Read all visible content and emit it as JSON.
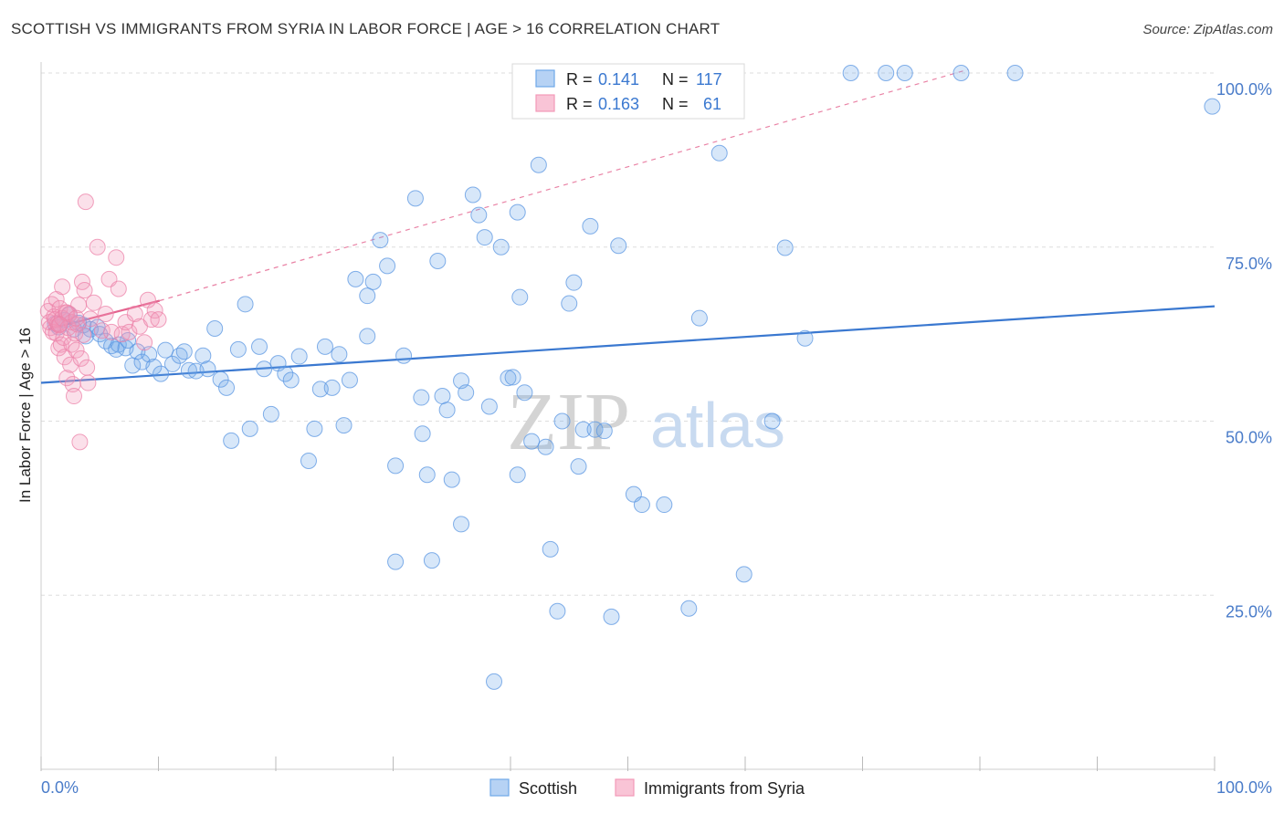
{
  "header": {
    "title": "SCOTTISH VS IMMIGRANTS FROM SYRIA IN LABOR FORCE | AGE > 16 CORRELATION CHART",
    "source": "Source: ZipAtlas.com"
  },
  "watermark": {
    "zip": "ZIP",
    "atlas": "atlas"
  },
  "colors": {
    "blue": "#6fa8e8",
    "blue_line": "#3a78d0",
    "pink": "#f299b8",
    "pink_line": "#e4648f",
    "tick_text": "#4a7cc9"
  },
  "legend": {
    "rows": [
      {
        "r_label": "R = ",
        "r_value": "0.141",
        "n_label": "N = ",
        "n_value": "117"
      },
      {
        "r_label": "R = ",
        "r_value": "0.163",
        "n_label": "N = ",
        "n_value": "61"
      }
    ]
  },
  "bottom_legend": [
    {
      "label": "Scottish"
    },
    {
      "label": "Immigrants from Syria"
    }
  ],
  "chart_data": {
    "type": "scatter",
    "title": "SCOTTISH VS IMMIGRANTS FROM SYRIA IN LABOR FORCE | AGE > 16 CORRELATION CHART",
    "xlabel": "",
    "ylabel": "In Labor Force | Age > 16",
    "xlim": [
      0,
      100
    ],
    "ylim": [
      0,
      105
    ],
    "x_tick_labels": [
      "0.0%",
      "100.0%"
    ],
    "y_ticks": [
      25,
      50,
      75,
      100
    ],
    "y_tick_labels": [
      "25.0%",
      "50.0%",
      "75.0%",
      "100.0%"
    ],
    "grid": true,
    "series": [
      {
        "name": "Scottish",
        "color": "#6fa8e8",
        "trend": [
          [
            0,
            55.5
          ],
          [
            100,
            66.5
          ]
        ],
        "points": [
          [
            1.2,
            64
          ],
          [
            1.5,
            63.5
          ],
          [
            2.0,
            64.5
          ],
          [
            2.4,
            65.3
          ],
          [
            2.8,
            63.2
          ],
          [
            3.2,
            64.1
          ],
          [
            3.6,
            63.8
          ],
          [
            3.8,
            62.2
          ],
          [
            4.2,
            63.2
          ],
          [
            4.8,
            63.5
          ],
          [
            5.0,
            62.5
          ],
          [
            5.5,
            61.5
          ],
          [
            6.0,
            60.8
          ],
          [
            6.4,
            60.3
          ],
          [
            6.6,
            61.0
          ],
          [
            7.2,
            60.5
          ],
          [
            7.4,
            61.6
          ],
          [
            7.8,
            58.0
          ],
          [
            8.2,
            60.0
          ],
          [
            8.6,
            58.5
          ],
          [
            9.2,
            59.6
          ],
          [
            9.6,
            57.8
          ],
          [
            10.2,
            56.8
          ],
          [
            10.6,
            60.2
          ],
          [
            11.2,
            58.2
          ],
          [
            11.8,
            59.4
          ],
          [
            12.2,
            60.0
          ],
          [
            12.6,
            57.3
          ],
          [
            13.2,
            57.2
          ],
          [
            13.8,
            59.4
          ],
          [
            14.2,
            57.5
          ],
          [
            14.8,
            63.3
          ],
          [
            15.3,
            56.0
          ],
          [
            15.8,
            54.8
          ],
          [
            16.2,
            47.2
          ],
          [
            16.8,
            60.3
          ],
          [
            17.4,
            66.8
          ],
          [
            17.8,
            48.9
          ],
          [
            18.6,
            60.7
          ],
          [
            19.0,
            57.5
          ],
          [
            19.6,
            51.0
          ],
          [
            20.2,
            58.3
          ],
          [
            20.8,
            56.8
          ],
          [
            21.3,
            55.9
          ],
          [
            22.0,
            59.3
          ],
          [
            22.8,
            44.3
          ],
          [
            23.3,
            48.9
          ],
          [
            23.8,
            54.6
          ],
          [
            24.2,
            60.7
          ],
          [
            24.8,
            54.8
          ],
          [
            25.4,
            59.6
          ],
          [
            25.8,
            49.4
          ],
          [
            26.3,
            55.9
          ],
          [
            26.8,
            70.4
          ],
          [
            27.8,
            68.0
          ],
          [
            27.8,
            62.2
          ],
          [
            28.3,
            70.0
          ],
          [
            28.9,
            76.0
          ],
          [
            29.5,
            72.3
          ],
          [
            30.2,
            43.6
          ],
          [
            30.2,
            29.8
          ],
          [
            30.9,
            59.4
          ],
          [
            31.9,
            82.0
          ],
          [
            32.4,
            53.4
          ],
          [
            32.5,
            48.2
          ],
          [
            32.9,
            42.3
          ],
          [
            33.3,
            30.0
          ],
          [
            33.8,
            73.0
          ],
          [
            34.2,
            53.6
          ],
          [
            34.6,
            51.6
          ],
          [
            35.0,
            41.6
          ],
          [
            35.8,
            55.8
          ],
          [
            35.8,
            35.2
          ],
          [
            36.2,
            54.1
          ],
          [
            36.8,
            82.5
          ],
          [
            37.3,
            79.6
          ],
          [
            37.8,
            76.4
          ],
          [
            38.2,
            52.1
          ],
          [
            38.6,
            12.6
          ],
          [
            39.2,
            75.0
          ],
          [
            39.8,
            56.2
          ],
          [
            40.2,
            56.3
          ],
          [
            40.6,
            42.3
          ],
          [
            40.6,
            80.0
          ],
          [
            40.8,
            67.8
          ],
          [
            41.2,
            54.1
          ],
          [
            41.8,
            47.1
          ],
          [
            42.4,
            86.8
          ],
          [
            43.0,
            46.3
          ],
          [
            43.4,
            31.6
          ],
          [
            44.0,
            22.7
          ],
          [
            44.4,
            50.0
          ],
          [
            45.0,
            66.9
          ],
          [
            45.4,
            69.9
          ],
          [
            45.8,
            43.5
          ],
          [
            46.2,
            48.8
          ],
          [
            46.8,
            78.0
          ],
          [
            47.2,
            48.8
          ],
          [
            48.0,
            48.6
          ],
          [
            48.6,
            21.9
          ],
          [
            49.2,
            75.2
          ],
          [
            50.5,
            39.5
          ],
          [
            51.2,
            38.0
          ],
          [
            53.1,
            38.0
          ],
          [
            55.2,
            23.1
          ],
          [
            56.1,
            64.8
          ],
          [
            57.8,
            88.5
          ],
          [
            59.9,
            28.0
          ],
          [
            62.3,
            50.0
          ],
          [
            63.4,
            74.9
          ],
          [
            65.1,
            61.9
          ],
          [
            69.0,
            100
          ],
          [
            72.0,
            100
          ],
          [
            73.6,
            100
          ],
          [
            78.4,
            100
          ],
          [
            83.0,
            100
          ],
          [
            99.8,
            95.2
          ]
        ]
      },
      {
        "name": "Immigrants from Syria",
        "color": "#f299b8",
        "trend": [
          [
            0.6,
            63.2
          ],
          [
            10.1,
            67.3
          ]
        ],
        "trend_extended": [
          [
            10.1,
            67.3
          ],
          [
            79.0,
            100.5
          ]
        ],
        "points": [
          [
            0.6,
            65.8
          ],
          [
            0.7,
            64.2
          ],
          [
            0.8,
            63.4
          ],
          [
            0.9,
            66.8
          ],
          [
            1.0,
            62.8
          ],
          [
            1.1,
            65.0
          ],
          [
            1.2,
            64.6
          ],
          [
            1.3,
            67.5
          ],
          [
            1.3,
            62.6
          ],
          [
            1.4,
            64.0
          ],
          [
            1.5,
            60.5
          ],
          [
            1.5,
            63.8
          ],
          [
            1.6,
            66.2
          ],
          [
            1.7,
            61.0
          ],
          [
            1.8,
            64.8
          ],
          [
            1.8,
            69.3
          ],
          [
            1.9,
            62.0
          ],
          [
            2.0,
            59.2
          ],
          [
            2.1,
            65.6
          ],
          [
            2.2,
            56.2
          ],
          [
            2.3,
            63.4
          ],
          [
            2.4,
            65.4
          ],
          [
            2.5,
            58.1
          ],
          [
            2.6,
            61.0
          ],
          [
            2.6,
            64.2
          ],
          [
            2.7,
            55.3
          ],
          [
            2.8,
            53.6
          ],
          [
            2.9,
            62.6
          ],
          [
            3.0,
            60.2
          ],
          [
            3.1,
            63.9
          ],
          [
            3.2,
            66.7
          ],
          [
            3.3,
            47.0
          ],
          [
            3.4,
            59.0
          ],
          [
            3.5,
            70.0
          ],
          [
            3.6,
            62.4
          ],
          [
            3.7,
            68.8
          ],
          [
            3.8,
            81.5
          ],
          [
            3.9,
            57.7
          ],
          [
            4.0,
            55.5
          ],
          [
            4.2,
            64.7
          ],
          [
            4.5,
            67.0
          ],
          [
            4.8,
            75.0
          ],
          [
            5.2,
            63.0
          ],
          [
            5.5,
            65.4
          ],
          [
            5.8,
            70.4
          ],
          [
            6.0,
            62.8
          ],
          [
            6.4,
            73.5
          ],
          [
            6.6,
            69.0
          ],
          [
            6.9,
            62.5
          ],
          [
            7.2,
            64.2
          ],
          [
            7.5,
            62.8
          ],
          [
            8.0,
            65.4
          ],
          [
            8.4,
            63.6
          ],
          [
            8.8,
            61.3
          ],
          [
            9.1,
            67.4
          ],
          [
            9.4,
            64.6
          ],
          [
            9.7,
            65.9
          ],
          [
            10.0,
            64.6
          ],
          [
            2.2,
            65.6
          ],
          [
            1.6,
            63.9
          ],
          [
            3.0,
            64.8
          ]
        ]
      }
    ]
  }
}
